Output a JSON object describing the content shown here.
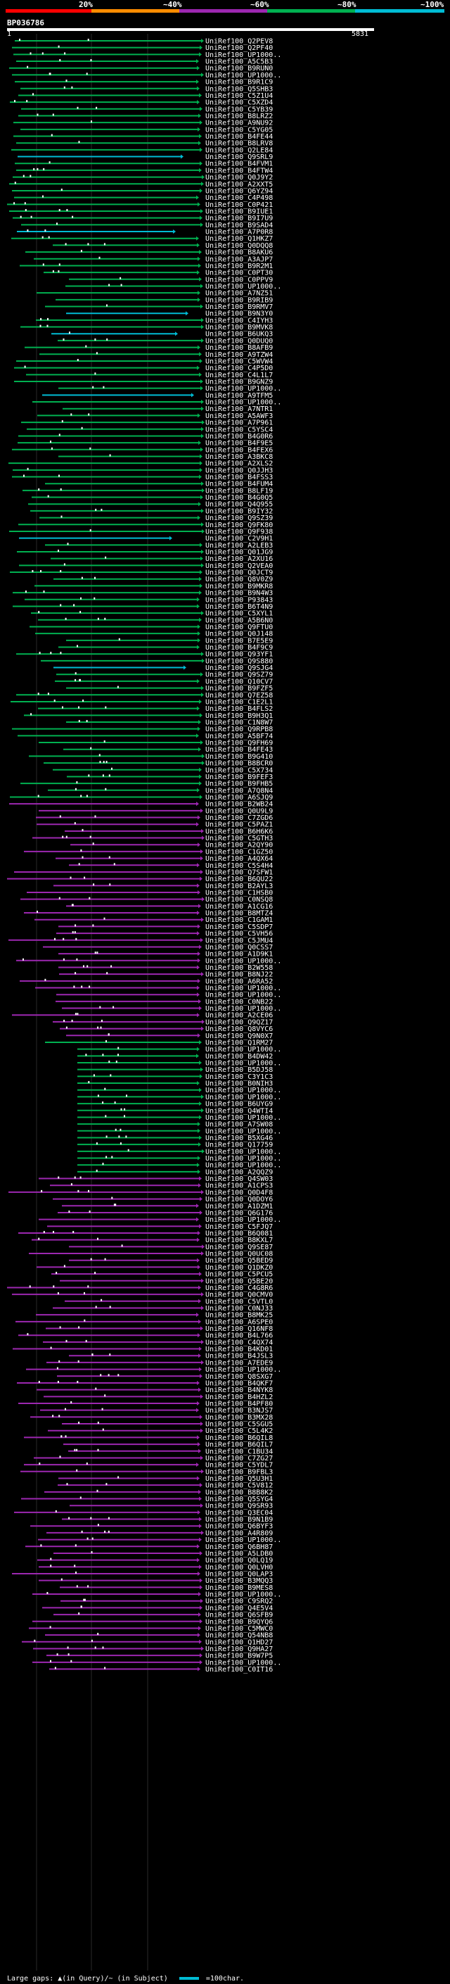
{
  "legend": {
    "marks": [
      "20%",
      "~40%",
      "~60%",
      "~80%",
      "~100%"
    ],
    "colors": [
      "#ff0000",
      "#ff8c00",
      "#9c27b0",
      "#00b050",
      "#00bcd4"
    ]
  },
  "query": {
    "id": "BP036786",
    "start": "1",
    "end": "5831"
  },
  "chart_data": {
    "type": "alignment-overview",
    "title": "BP036786",
    "x_range": [
      1,
      5831
    ],
    "hits": [
      "UniRef100_Q2PEV8",
      "UniRef100_Q2PF40",
      "UniRef100_UP1000..",
      "UniRef100_A5C5B3",
      "UniRef100_B9RUN0",
      "UniRef100_UP1000..",
      "UniRef100_B9R1C9",
      "UniRef100_Q5SHB3",
      "UniRef100_C5Z1U4",
      "UniRef100_C5XZD4",
      "UniRef100_C5YB39",
      "UniRef100_B8LRZ2",
      "UniRef100_A9NU92",
      "UniRef100_C5YG05",
      "UniRef100_B4FE44",
      "UniRef100_B8LRV8",
      "UniRef100_Q2LE84",
      "UniRef100_Q9SRL9",
      "UniRef100_B4FVM1",
      "UniRef100_B4FTW4",
      "UniRef100_Q0J9Y2",
      "UniRef100_A2XXT5",
      "UniRef100_Q6YZ94",
      "UniRef100_C4P498",
      "UniRef100_C0P421",
      "UniRef100_B9IUE1",
      "UniRef100_B9I7U9",
      "UniRef100_B9SAD4",
      "UniRef100_A7P0R8",
      "UniRef100_Q1HKZ7",
      "UniRef100_Q0DQQ8",
      "UniRef100_B8AKU6",
      "UniRef100_A3AJP7",
      "UniRef100_B9R2M1",
      "UniRef100_C0PT30",
      "UniRef100_C0PPV9",
      "UniRef100_UP1000..",
      "UniRef100_A7NZ51",
      "UniRef100_B9RIB9",
      "UniRef100_B9RMV7",
      "UniRef100_B9N3Y0",
      "UniRef100_C4IYH3",
      "UniRef100_B9MVK8",
      "UniRef100_B6UKQ3",
      "UniRef100_Q0DUQ0",
      "UniRef100_B8AFB9",
      "UniRef100_A9TZW4",
      "UniRef100_C5WVW4",
      "UniRef100_C4P5D0",
      "UniRef100_C4L1L7",
      "UniRef100_B9GNZ9",
      "UniRef100_UP1000..",
      "UniRef100_A9TFM5",
      "UniRef100_UP1000..",
      "UniRef100_A7NTR1",
      "UniRef100_A5AWF3",
      "UniRef100_A7P961",
      "UniRef100_C5YSC4",
      "UniRef100_B4G0R6",
      "UniRef100_B4F9E5",
      "UniRef100_B4FEX6",
      "UniRef100_A3BKC8",
      "UniRef100_A2XLS2",
      "UniRef100_Q0JJH3",
      "UniRef100_B4FSS3",
      "UniRef100_B4FUM4",
      "UniRef100_B8LF19",
      "UniRef100_B4G0Q5",
      "UniRef100_Q4Q955",
      "UniRef100_B9IY32",
      "UniRef100_Q9SZ39",
      "UniRef100_Q9FK80",
      "UniRef100_Q9F938",
      "UniRef100_C2V9H1",
      "UniRef100_A2LEB3",
      "UniRef100_Q01JG9",
      "UniRef100_A2XU16",
      "UniRef100_Q2VEA0",
      "UniRef100_Q0JCT9",
      "UniRef100_Q8V0Z9",
      "UniRef100_B9MKR8",
      "UniRef100_B9N4W3",
      "UniRef100_P93843",
      "UniRef100_B6T4N9",
      "UniRef100_C5XYL1",
      "UniRef100_A5B6N0",
      "UniRef100_Q9FTU0",
      "UniRef100_Q0J148",
      "UniRef100_B7E5E9",
      "UniRef100_B4F9C9",
      "UniRef100_Q93YF1",
      "UniRef100_Q9S880",
      "UniRef100_Q9SJG4",
      "UniRef100_Q9SZ79",
      "UniRef100_Q10CV7",
      "UniRef100_B9FZF5",
      "UniRef100_Q7EZ58",
      "UniRef100_C1E2L1",
      "UniRef100_B4FLS2",
      "UniRef100_B9H3Q1",
      "UniRef100_C1N8W7",
      "UniRef100_Q9RPB8",
      "UniRef100_A5BF74",
      "UniRef100_Q9FH69",
      "UniRef100_B4FE43",
      "UniRef100_B9G410",
      "UniRef100_B8BCR0",
      "UniRef100_C5X734",
      "UniRef100_B9FEF3",
      "UniRef100_B9FHB5",
      "UniRef100_A7Q8N4",
      "UniRef100_A6SJQ9",
      "UniRef100_B2WB24",
      "UniRef100_Q0U9L9",
      "UniRef100_C7ZGD6",
      "UniRef100_C5PAZ1",
      "UniRef100_B6H6K6",
      "UniRef100_C5GTH3",
      "UniRef100_A2QY90",
      "UniRef100_C1GZ50",
      "UniRef100_A4QX64",
      "UniRef100_C5S4H4",
      "UniRef100_Q7SFW1",
      "UniRef100_B6QU22",
      "UniRef100_B2AYL3",
      "UniRef100_C1HSB0",
      "UniRef100_C0NSQ8",
      "UniRef100_A1CG16",
      "UniRef100_B8MTZ4",
      "UniRef100_C1GAM1",
      "UniRef100_C5SDP7",
      "UniRef100_C5VH56",
      "UniRef100_C5JMU4",
      "UniRef100_Q0CSS7",
      "UniRef100_A1D9K1",
      "UniRef100_UP1000..",
      "UniRef100_B2W558",
      "UniRef100_B8NJ22",
      "UniRef100_A6RA52",
      "UniRef100_UP1000..",
      "UniRef100_UP1000..",
      "UniRef100_C0NB22",
      "UniRef100_UP1000..",
      "UniRef100_A2CE06",
      "UniRef100_Q9QZ17",
      "UniRef100_Q8VYC6",
      "UniRef100_Q9N0X7",
      "UniRef100_Q1RM27",
      "UniRef100_UP1000..",
      "UniRef100_B4DW42",
      "UniRef100_UP1000..",
      "UniRef100_B5DJ58",
      "UniRef100_C3Y1C3",
      "UniRef100_B0NIH3",
      "UniRef100_UP1000..",
      "UniRef100_UP1000..",
      "UniRef100_B6UYG9",
      "UniRef100_Q4WTI4",
      "UniRef100_UP1000..",
      "UniRef100_A7SW08",
      "UniRef100_UP1000..",
      "UniRef100_B5XG46",
      "UniRef100_Q17759",
      "UniRef100_UP1000..",
      "UniRef100_UP1000..",
      "UniRef100_UP1000..",
      "UniRef100_A2QQZ9",
      "UniRef100_Q4SW03",
      "UniRef100_A1CPS3",
      "UniRef100_Q0D4F8",
      "UniRef100_Q0DOY6",
      "UniRef100_A1DZM1",
      "UniRef100_Q6G176",
      "UniRef100_UP1000..",
      "UniRef100_C5FJQ7",
      "UniRef100_B6Q081",
      "UniRef100_B8KXL7",
      "UniRef100_Q9SE87",
      "UniRef100_Q0UC08",
      "UniRef100_Q5BED9",
      "UniRef100_Q1DKZ0",
      "UniRef100_C5PCU5",
      "UniRef100_Q5BE20",
      "UniRef100_C4G8R6",
      "UniRef100_Q0CMV0",
      "UniRef100_C5VTL0",
      "UniRef100_C0NJ33",
      "UniRef100_B8MK25",
      "UniRef100_A6SPE0",
      "UniRef100_Q16NF8",
      "UniRef100_B4L766",
      "UniRef100_C4QX74",
      "UniRef100_B4KD01",
      "UniRef100_B4JSL3",
      "UniRef100_A7EDE9",
      "UniRef100_UP1000..",
      "UniRef100_Q8SXG7",
      "UniRef100_B4QKF7",
      "UniRef100_B4NYK8",
      "UniRef100_B4HZL2",
      "UniRef100_B4PF80",
      "UniRef100_B3NJS7",
      "UniRef100_B3MX28",
      "UniRef100_C5SGU5",
      "UniRef100_C5L4K2",
      "UniRef100_B6QIL8",
      "UniRef100_B6QIL7",
      "UniRef100_C1BU34",
      "UniRef100_C7ZG27",
      "UniRef100_C5YDL7",
      "UniRef100_B9FBL3",
      "UniRef100_Q5U3H1",
      "UniRef100_C5V812",
      "UniRef100_B8B8K2",
      "UniRef100_Q5SYG4",
      "UniRef100_Q9SR93",
      "UniRef100_Q3EC04",
      "UniRef100_B9N1B9",
      "UniRef100_Q6BYF3",
      "UniRef100_A4R809",
      "UniRef100_UP1000..",
      "UniRef100_Q6BH87",
      "UniRef100_A5LDB0",
      "UniRef100_Q0LQ19",
      "UniRef100_Q0LVH0",
      "UniRef100_Q0LAP3",
      "UniRef100_B3MQQ3",
      "UniRef100_B9MES8",
      "UniRef100_UP1000..",
      "UniRef100_C9SRQ2",
      "UniRef100_Q4E5V4",
      "UniRef100_Q6SFB9",
      "UniRef100_B9QYQ6",
      "UniRef100_C5MWC0",
      "UniRef100_Q54NB8",
      "UniRef100_Q1HD27",
      "UniRef100_Q9HA27",
      "UniRef100_B9W7P5",
      "UniRef100_UP1000..",
      "UniRef100_C0IT16"
    ]
  },
  "footer": {
    "text": "Large gaps: ▲(in Query)/~ (in Subject)",
    "scale_label": "=100char."
  }
}
